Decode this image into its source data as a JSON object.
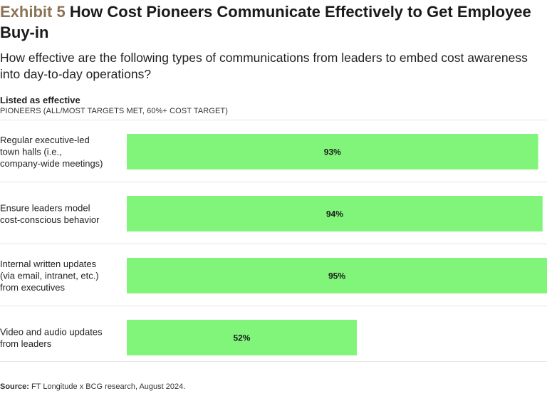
{
  "header": {
    "exhibit": "Exhibit 5",
    "title": "How Cost Pioneers Communicate Effectively to Get Employee Buy-in",
    "subtitle": "How effective are the following types of communications from leaders to embed cost awareness into day-to-day operations?"
  },
  "legend": {
    "label": "Listed as effective",
    "sub": "PIONEERS (ALL/MOST TARGETS MET, 60%+ COST TARGET)"
  },
  "chart_data": {
    "type": "bar",
    "orientation": "horizontal",
    "categories": [
      [
        "Regular executive-led",
        "town halls (i.e.,",
        "company-wide meetings)"
      ],
      [
        "Ensure leaders model",
        "cost-conscious behavior"
      ],
      [
        "Internal written updates",
        "(via email, intranet, etc.)",
        "from executives"
      ],
      [
        "Video and audio updates",
        "from leaders"
      ]
    ],
    "series": [
      {
        "name": "Listed as effective",
        "values": [
          93,
          94,
          95,
          52
        ]
      }
    ],
    "value_labels": [
      "93%",
      "94%",
      "95%",
      "52%"
    ],
    "xlim": [
      0,
      100
    ],
    "bar_color": "#80f57a",
    "grid": false
  },
  "source": {
    "prefix": "Source:",
    "text": "FT Longitude x BCG research, August 2024."
  }
}
